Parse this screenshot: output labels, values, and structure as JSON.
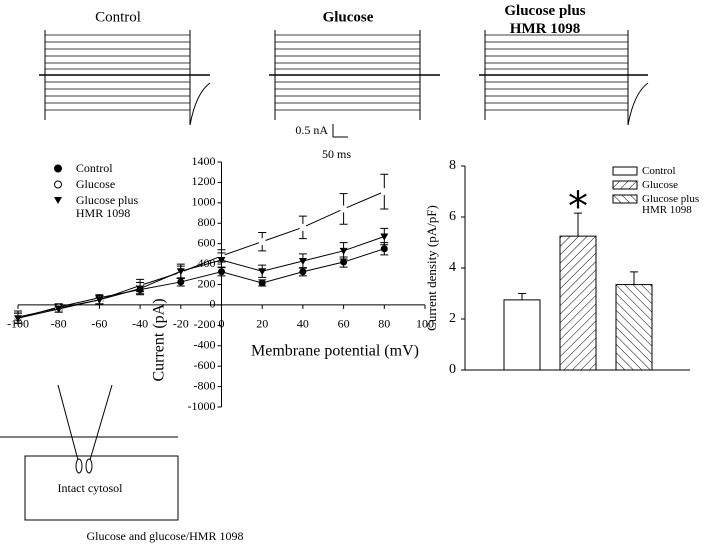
{
  "traces": {
    "titles": [
      "Control",
      "Glucose",
      "Glucose plus HMR 1098"
    ],
    "scale_current": "0.5 nA",
    "scale_time": "50 ms"
  },
  "diagram": {
    "label": "Intact cytosol",
    "caption": "Glucose and glucose/HMR 1098"
  },
  "chart_data": [
    {
      "type": "line",
      "xlabel": "Membrane potential (mV)",
      "ylabel": "Current (pA)",
      "x": [
        -100,
        -80,
        -60,
        -40,
        -20,
        0,
        20,
        40,
        60,
        80
      ],
      "xlim": [
        -100,
        100
      ],
      "xticks": [
        -100,
        -80,
        -60,
        -40,
        -20,
        0,
        20,
        40,
        60,
        80,
        100
      ],
      "ylim": [
        -1000,
        1400
      ],
      "yticks": [
        -1000,
        -800,
        -600,
        -400,
        -200,
        0,
        200,
        400,
        600,
        800,
        1000,
        1200,
        1400
      ],
      "series": [
        {
          "name": "Control",
          "color": "#000000",
          "marker": "circle-filled",
          "values": [
            -130,
            -20,
            70,
            150,
            225,
            325,
            215,
            325,
            420,
            550
          ],
          "errors": [
            50,
            30,
            30,
            40,
            40,
            40,
            30,
            40,
            50,
            60
          ]
        },
        {
          "name": "Glucose",
          "color": "#000000",
          "marker": "circle-open",
          "values": [
            -120,
            -30,
            50,
            190,
            320,
            480,
            620,
            760,
            940,
            1110
          ],
          "errors": [
            60,
            40,
            40,
            60,
            60,
            60,
            90,
            110,
            150,
            170
          ]
        },
        {
          "name": "Glucose plus HMR 1098",
          "color": "#000000",
          "marker": "triangle-down",
          "values": [
            -130,
            -40,
            50,
            160,
            330,
            440,
            330,
            430,
            530,
            670
          ],
          "errors": [
            50,
            30,
            40,
            60,
            70,
            70,
            60,
            70,
            80,
            80
          ]
        }
      ]
    },
    {
      "type": "bar",
      "ylabel": "Current density (pA/pF)",
      "annotation": "*",
      "ylim": [
        0,
        8
      ],
      "yticks": [
        0,
        2,
        4,
        6,
        8
      ],
      "series": [
        {
          "name": "Control",
          "color": "#000000",
          "pattern": "none",
          "values": [
            2.75
          ],
          "errors": [
            0.25
          ]
        },
        {
          "name": "Glucose",
          "color": "#000000",
          "pattern": "hatch-right",
          "values": [
            5.25
          ],
          "errors": [
            0.9
          ]
        },
        {
          "name": "Glucose plus HMR 1098",
          "color": "#000000",
          "pattern": "hatch-left",
          "values": [
            3.35
          ],
          "errors": [
            0.5
          ]
        }
      ]
    }
  ]
}
